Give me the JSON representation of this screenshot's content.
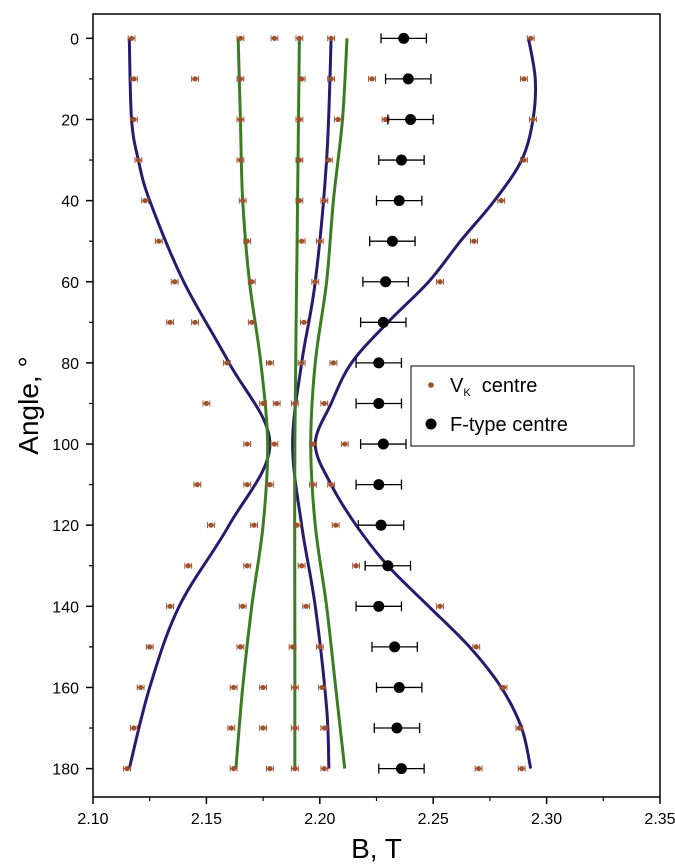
{
  "chart_data": {
    "type": "scatter",
    "title": "",
    "xlabel": "B, T",
    "ylabel": "Angle, °",
    "xlim": [
      2.1,
      2.35
    ],
    "ylim": [
      -6,
      187
    ],
    "y_reversed": true,
    "x_ticks": [
      "2.10",
      "2.15",
      "2.20",
      "2.25",
      "2.30",
      "2.35"
    ],
    "y_ticks": [
      "0",
      "20",
      "40",
      "60",
      "80",
      "100",
      "120",
      "140",
      "160",
      "180"
    ],
    "grid": false,
    "legend_position": "right",
    "colors": {
      "vk": "#a0522d",
      "f": "#000000",
      "fit_purple": "#2a1a6e",
      "fit_green": "#3a7d22"
    },
    "legend": [
      {
        "label_main": "V",
        "label_sub": "K",
        "label_rest": "  centre",
        "marker": "small-dot",
        "color": "#a0522d"
      },
      {
        "label": "F-type centre",
        "marker": "large-dot",
        "color": "#000000"
      }
    ],
    "series": [
      {
        "name": "VK centre",
        "marker": "small-dot-errorbar",
        "x_error": 0.0015,
        "points": [
          [
            2.117,
            0
          ],
          [
            2.165,
            0
          ],
          [
            2.18,
            0
          ],
          [
            2.191,
            0
          ],
          [
            2.205,
            0
          ],
          [
            2.293,
            0
          ],
          [
            2.118,
            10
          ],
          [
            2.145,
            10
          ],
          [
            2.165,
            10
          ],
          [
            2.192,
            10
          ],
          [
            2.205,
            10
          ],
          [
            2.223,
            10
          ],
          [
            2.29,
            10
          ],
          [
            2.118,
            20
          ],
          [
            2.165,
            20
          ],
          [
            2.191,
            20
          ],
          [
            2.208,
            20
          ],
          [
            2.229,
            20
          ],
          [
            2.294,
            20
          ],
          [
            2.12,
            30
          ],
          [
            2.165,
            30
          ],
          [
            2.191,
            30
          ],
          [
            2.204,
            30
          ],
          [
            2.29,
            30
          ],
          [
            2.123,
            40
          ],
          [
            2.166,
            40
          ],
          [
            2.191,
            40
          ],
          [
            2.202,
            40
          ],
          [
            2.28,
            40
          ],
          [
            2.129,
            50
          ],
          [
            2.168,
            50
          ],
          [
            2.192,
            50
          ],
          [
            2.2,
            50
          ],
          [
            2.268,
            50
          ],
          [
            2.136,
            60
          ],
          [
            2.17,
            60
          ],
          [
            2.198,
            60
          ],
          [
            2.253,
            60
          ],
          [
            2.134,
            70
          ],
          [
            2.145,
            70
          ],
          [
            2.17,
            70
          ],
          [
            2.193,
            70
          ],
          [
            2.159,
            80
          ],
          [
            2.178,
            80
          ],
          [
            2.192,
            80
          ],
          [
            2.206,
            80
          ],
          [
            2.15,
            90
          ],
          [
            2.175,
            90
          ],
          [
            2.181,
            90
          ],
          [
            2.189,
            90
          ],
          [
            2.202,
            90
          ],
          [
            2.168,
            100
          ],
          [
            2.18,
            100
          ],
          [
            2.197,
            100
          ],
          [
            2.211,
            100
          ],
          [
            2.146,
            110
          ],
          [
            2.168,
            110
          ],
          [
            2.178,
            110
          ],
          [
            2.197,
            110
          ],
          [
            2.205,
            110
          ],
          [
            2.152,
            120
          ],
          [
            2.171,
            120
          ],
          [
            2.19,
            120
          ],
          [
            2.207,
            120
          ],
          [
            2.142,
            130
          ],
          [
            2.168,
            130
          ],
          [
            2.192,
            130
          ],
          [
            2.216,
            130
          ],
          [
            2.134,
            140
          ],
          [
            2.166,
            140
          ],
          [
            2.194,
            140
          ],
          [
            2.253,
            140
          ],
          [
            2.125,
            150
          ],
          [
            2.165,
            150
          ],
          [
            2.188,
            150
          ],
          [
            2.2,
            150
          ],
          [
            2.269,
            150
          ],
          [
            2.121,
            160
          ],
          [
            2.162,
            160
          ],
          [
            2.175,
            160
          ],
          [
            2.189,
            160
          ],
          [
            2.201,
            160
          ],
          [
            2.281,
            160
          ],
          [
            2.118,
            170
          ],
          [
            2.161,
            170
          ],
          [
            2.175,
            170
          ],
          [
            2.189,
            170
          ],
          [
            2.202,
            170
          ],
          [
            2.288,
            170
          ],
          [
            2.115,
            180
          ],
          [
            2.162,
            180
          ],
          [
            2.178,
            180
          ],
          [
            2.189,
            180
          ],
          [
            2.202,
            180
          ],
          [
            2.27,
            180
          ],
          [
            2.289,
            180
          ]
        ]
      },
      {
        "name": "F-type centre",
        "marker": "large-dot-errorbar",
        "x_error": 0.01,
        "points": [
          [
            2.237,
            0
          ],
          [
            2.239,
            10
          ],
          [
            2.24,
            20
          ],
          [
            2.236,
            30
          ],
          [
            2.235,
            40
          ],
          [
            2.232,
            50
          ],
          [
            2.229,
            60
          ],
          [
            2.228,
            70
          ],
          [
            2.226,
            80
          ],
          [
            2.226,
            90
          ],
          [
            2.228,
            100
          ],
          [
            2.226,
            110
          ],
          [
            2.227,
            120
          ],
          [
            2.23,
            130
          ],
          [
            2.226,
            140
          ],
          [
            2.233,
            150
          ],
          [
            2.235,
            160
          ],
          [
            2.234,
            170
          ],
          [
            2.236,
            180
          ]
        ]
      }
    ],
    "fit_curves": [
      {
        "color": "#2a1a6e",
        "points": [
          [
            2.116,
            0
          ],
          [
            2.117,
            20
          ],
          [
            2.12,
            30
          ],
          [
            2.125,
            40
          ],
          [
            2.14,
            60
          ],
          [
            2.16,
            80
          ],
          [
            2.178,
            100
          ],
          [
            2.16,
            120
          ],
          [
            2.138,
            140
          ],
          [
            2.125,
            160
          ],
          [
            2.116,
            180
          ]
        ]
      },
      {
        "color": "#2a1a6e",
        "points": [
          [
            2.292,
            0
          ],
          [
            2.295,
            10
          ],
          [
            2.294,
            20
          ],
          [
            2.289,
            30
          ],
          [
            2.277,
            40
          ],
          [
            2.262,
            50
          ],
          [
            2.248,
            60
          ],
          [
            2.23,
            70
          ],
          [
            2.214,
            80
          ],
          [
            2.205,
            90
          ],
          [
            2.198,
            100
          ],
          [
            2.205,
            110
          ],
          [
            2.216,
            120
          ],
          [
            2.23,
            130
          ],
          [
            2.248,
            140
          ],
          [
            2.266,
            150
          ],
          [
            2.28,
            160
          ],
          [
            2.289,
            170
          ],
          [
            2.293,
            180
          ]
        ]
      },
      {
        "color": "#2a1a6e",
        "points": [
          [
            2.205,
            0
          ],
          [
            2.203,
            30
          ],
          [
            2.198,
            60
          ],
          [
            2.192,
            80
          ],
          [
            2.188,
            100
          ],
          [
            2.192,
            120
          ],
          [
            2.198,
            140
          ],
          [
            2.203,
            165
          ],
          [
            2.204,
            180
          ]
        ]
      },
      {
        "color": "#3a7d22",
        "points": [
          [
            2.164,
            0
          ],
          [
            2.165,
            20
          ],
          [
            2.166,
            40
          ],
          [
            2.169,
            60
          ],
          [
            2.174,
            80
          ],
          [
            2.177,
            100
          ],
          [
            2.175,
            120
          ],
          [
            2.17,
            140
          ],
          [
            2.166,
            160
          ],
          [
            2.163,
            180
          ]
        ]
      },
      {
        "color": "#3a7d22",
        "points": [
          [
            2.191,
            0
          ],
          [
            2.19,
            50
          ],
          [
            2.189,
            100
          ],
          [
            2.189,
            150
          ],
          [
            2.189,
            180
          ]
        ]
      },
      {
        "color": "#3a7d22",
        "points": [
          [
            2.212,
            0
          ],
          [
            2.21,
            20
          ],
          [
            2.206,
            40
          ],
          [
            2.203,
            60
          ],
          [
            2.198,
            80
          ],
          [
            2.196,
            100
          ],
          [
            2.198,
            120
          ],
          [
            2.203,
            140
          ],
          [
            2.207,
            160
          ],
          [
            2.211,
            180
          ]
        ]
      }
    ]
  }
}
